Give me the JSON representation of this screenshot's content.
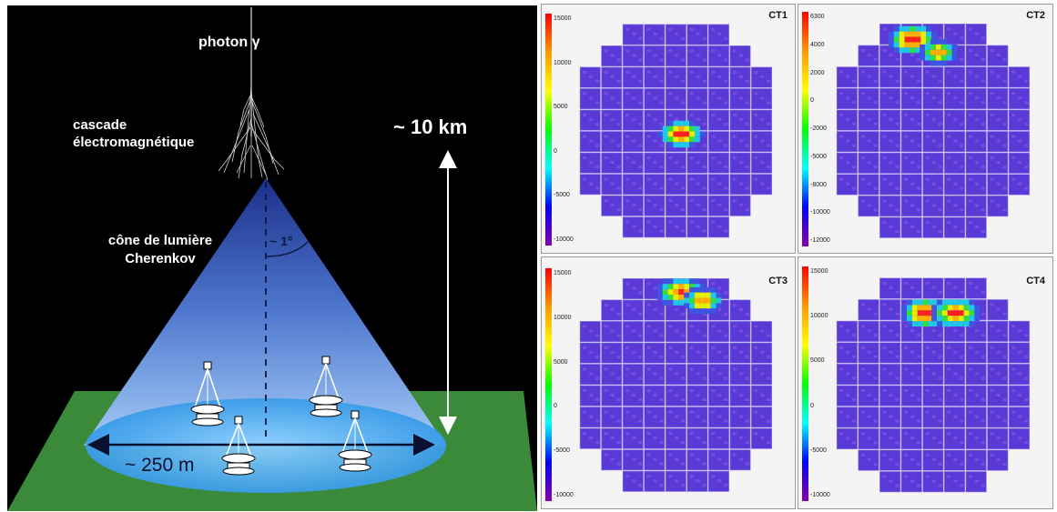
{
  "schematic": {
    "photon_label": "photon γ",
    "cascade_label_line1": "cascade",
    "cascade_label_line2": "électromagnétique",
    "cone_label_line1": "cône de lumière",
    "cone_label_line2": "Cherenkov",
    "angle_label": "~ 1°",
    "height_label": "~ 10 km",
    "width_label": "~ 250 m",
    "colors": {
      "sky": "#000000",
      "ground": "#3a8a3a",
      "cone_top": "#1c2f8a",
      "cone_bottom": "#9cc8f6",
      "pool": "#4aa8f0"
    }
  },
  "cameras": [
    {
      "title": "CT1",
      "ticks": [
        "15000",
        "10000",
        "5000",
        "0",
        "-5000",
        "-10000"
      ]
    },
    {
      "title": "CT2",
      "ticks": [
        "6300",
        "4000",
        "2000",
        "0",
        "-2000",
        "-5000",
        "-8000",
        "-10000",
        "-12000"
      ]
    },
    {
      "title": "CT3",
      "ticks": [
        "15000",
        "10000",
        "5000",
        "0",
        "-5000",
        "-10000"
      ]
    },
    {
      "title": "CT4",
      "ticks": [
        "15000",
        "10000",
        "5000",
        "0",
        "-5000",
        "-10000"
      ]
    }
  ]
}
